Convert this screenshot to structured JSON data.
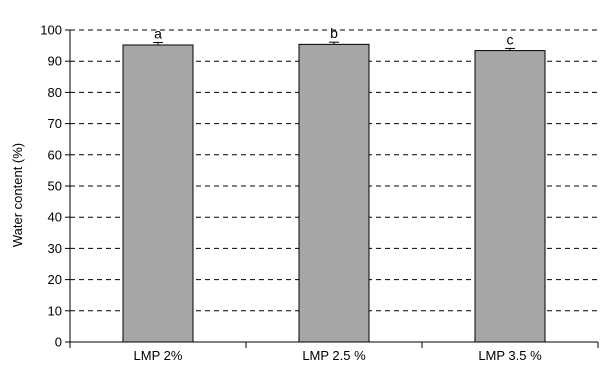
{
  "chart_data": {
    "type": "bar",
    "title": "",
    "xlabel": "",
    "ylabel": "Water  content (%)",
    "categories": [
      "LMP 2%",
      "LMP 2.5 %",
      "LMP 3.5 %"
    ],
    "values": [
      95.2,
      95.4,
      93.4
    ],
    "errors": [
      0.8,
      0.7,
      0.7
    ],
    "significance_labels": [
      "a",
      "b",
      "c"
    ],
    "ylim": [
      0,
      100
    ],
    "yticks": [
      0,
      10,
      20,
      30,
      40,
      50,
      60,
      70,
      80,
      90,
      100
    ],
    "grid": "horizontal dashed",
    "legend": "none",
    "bar_color": "#a6a6a6"
  }
}
